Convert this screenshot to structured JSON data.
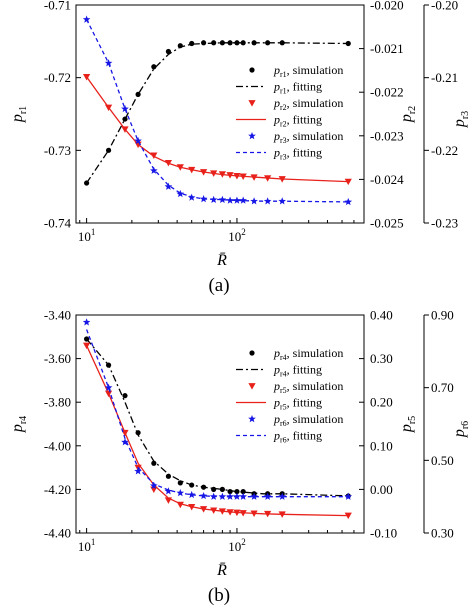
{
  "figure": {
    "panel_labels": [
      "(a)",
      "(b)"
    ]
  },
  "chart_data": [
    {
      "type": "line",
      "panel": "(a)",
      "xlabel": "R̄",
      "xscale": "log",
      "xlim": [
        8.5,
        700
      ],
      "xticks": [
        {
          "value": 10,
          "label": "10",
          "sup": "1"
        },
        {
          "value": 100,
          "label": "10",
          "sup": "2"
        }
      ],
      "left_axis": {
        "label": "p",
        "sub": "r1",
        "ylim": [
          -0.74,
          -0.71
        ],
        "ticks": [
          "-0.74",
          "-0.73",
          "-0.72",
          "-0.71"
        ]
      },
      "right_axes": [
        {
          "label": "p",
          "sub": "r2",
          "ylim": [
            -0.025,
            -0.02
          ],
          "ticks": [
            "-0.025",
            "-0.024",
            "-0.023",
            "-0.022",
            "-0.021",
            "-0.020"
          ]
        },
        {
          "label": "p",
          "sub": "r3",
          "ylim": [
            -0.23,
            -0.2
          ],
          "ticks": [
            "-0.23",
            "-0.22",
            "-0.21",
            "-0.20"
          ]
        }
      ],
      "series": [
        {
          "name": "p_r1, simulation",
          "label_main": "p",
          "label_sub": "r1",
          "label_rest": ", simulation",
          "kind": "marker",
          "marker": "circle",
          "color": "#000000",
          "axis": 0,
          "x": [
            10,
            14,
            18,
            22,
            28,
            35,
            42,
            50,
            60,
            70,
            80,
            90,
            100,
            110,
            130,
            160,
            200,
            550
          ],
          "y": [
            -0.7345,
            -0.73,
            -0.7257,
            -0.7223,
            -0.7185,
            -0.7164,
            -0.7156,
            -0.7153,
            -0.7152,
            -0.7152,
            -0.7152,
            -0.7152,
            -0.7152,
            -0.7152,
            -0.7152,
            -0.7152,
            -0.7152,
            -0.7153
          ]
        },
        {
          "name": "p_r1, fitting",
          "label_main": "p",
          "label_sub": "r1",
          "label_rest": ", fitting",
          "kind": "line",
          "dash": "7,3,2,3",
          "color": "#000000",
          "axis": 0,
          "x": [
            10,
            14,
            18,
            22,
            28,
            35,
            42,
            50,
            60,
            80,
            100,
            150,
            200,
            550
          ],
          "y": [
            -0.7345,
            -0.73,
            -0.7257,
            -0.7223,
            -0.7188,
            -0.7168,
            -0.7158,
            -0.7154,
            -0.7153,
            -0.7152,
            -0.7152,
            -0.7152,
            -0.7152,
            -0.7153
          ]
        },
        {
          "name": "p_r2, simulation",
          "label_main": "p",
          "label_sub": "r2",
          "label_rest": ", simulation",
          "kind": "marker",
          "marker": "triangle-down",
          "color": "#e8211b",
          "axis": 1,
          "x": [
            10,
            14,
            18,
            22,
            28,
            35,
            42,
            50,
            60,
            70,
            80,
            90,
            100,
            110,
            130,
            160,
            200,
            550
          ],
          "y": [
            -0.02165,
            -0.02235,
            -0.02285,
            -0.0232,
            -0.02345,
            -0.02362,
            -0.02372,
            -0.02378,
            -0.02383,
            -0.02386,
            -0.02388,
            -0.0239,
            -0.02392,
            -0.02393,
            -0.02395,
            -0.02397,
            -0.02399,
            -0.02405
          ]
        },
        {
          "name": "p_r2, fitting",
          "label_main": "p",
          "label_sub": "r2",
          "label_rest": ", fitting",
          "kind": "line",
          "dash": "",
          "color": "#e8211b",
          "axis": 1,
          "x": [
            10,
            14,
            18,
            22,
            28,
            35,
            42,
            50,
            60,
            80,
            100,
            150,
            200,
            550
          ],
          "y": [
            -0.02165,
            -0.02235,
            -0.02285,
            -0.0232,
            -0.02347,
            -0.02363,
            -0.02372,
            -0.02378,
            -0.02383,
            -0.02389,
            -0.02392,
            -0.02396,
            -0.02399,
            -0.02405
          ]
        },
        {
          "name": "p_r3, simulation",
          "label_main": "p",
          "label_sub": "r3",
          "label_rest": ", simulation",
          "kind": "marker",
          "marker": "star",
          "color": "#1616e6",
          "axis": 2,
          "x": [
            10,
            14,
            18,
            22,
            28,
            35,
            42,
            50,
            60,
            70,
            80,
            90,
            100,
            110,
            130,
            160,
            200,
            550
          ],
          "y": [
            -0.202,
            -0.208,
            -0.2143,
            -0.2187,
            -0.2228,
            -0.225,
            -0.226,
            -0.2265,
            -0.2267,
            -0.2268,
            -0.2268,
            -0.2269,
            -0.2269,
            -0.2269,
            -0.227,
            -0.227,
            -0.227,
            -0.2271
          ]
        },
        {
          "name": "p_r3, fitting",
          "label_main": "p",
          "label_sub": "r3",
          "label_rest": ", fitting",
          "kind": "line",
          "dash": "4,3",
          "color": "#1616e6",
          "axis": 2,
          "x": [
            10,
            14,
            18,
            22,
            28,
            35,
            42,
            50,
            60,
            80,
            100,
            150,
            200,
            550
          ],
          "y": [
            -0.202,
            -0.208,
            -0.2143,
            -0.2187,
            -0.2226,
            -0.2248,
            -0.2259,
            -0.2264,
            -0.2267,
            -0.2268,
            -0.2269,
            -0.227,
            -0.227,
            -0.2271
          ]
        }
      ]
    },
    {
      "type": "line",
      "panel": "(b)",
      "xlabel": "R̄",
      "xscale": "log",
      "xlim": [
        8.5,
        700
      ],
      "xticks": [
        {
          "value": 10,
          "label": "10",
          "sup": "1"
        },
        {
          "value": 100,
          "label": "10",
          "sup": "2"
        }
      ],
      "left_axis": {
        "label": "p",
        "sub": "r4",
        "ylim": [
          -4.4,
          -3.4
        ],
        "ticks": [
          "-4.40",
          "-4.20",
          "-4.00",
          "-3.80",
          "-3.60",
          "-3.40"
        ]
      },
      "right_axes": [
        {
          "label": "p",
          "sub": "r5",
          "ylim": [
            -0.1,
            0.4
          ],
          "ticks": [
            "-0.10",
            "0.00",
            "0.10",
            "0.20",
            "0.30",
            "0.40"
          ]
        },
        {
          "label": "p",
          "sub": "r6",
          "ylim": [
            0.3,
            0.9
          ],
          "ticks": [
            "0.30",
            "0.50",
            "0.70",
            "0.90"
          ]
        }
      ],
      "series": [
        {
          "name": "p_r4, simulation",
          "label_main": "p",
          "label_sub": "r4",
          "label_rest": ", simulation",
          "kind": "marker",
          "marker": "circle",
          "color": "#000000",
          "axis": 0,
          "x": [
            10,
            14,
            18,
            22,
            28,
            35,
            42,
            50,
            60,
            70,
            80,
            90,
            100,
            110,
            130,
            160,
            200,
            550
          ],
          "y": [
            -3.51,
            -3.63,
            -3.77,
            -3.94,
            -4.08,
            -4.14,
            -4.17,
            -4.18,
            -4.19,
            -4.2,
            -4.2,
            -4.21,
            -4.21,
            -4.21,
            -4.22,
            -4.22,
            -4.22,
            -4.23
          ]
        },
        {
          "name": "p_r4, fitting",
          "label_main": "p",
          "label_sub": "r4",
          "label_rest": ", fitting",
          "kind": "line",
          "dash": "7,3,2,3",
          "color": "#000000",
          "axis": 0,
          "x": [
            10,
            14,
            18,
            22,
            28,
            35,
            42,
            50,
            60,
            80,
            100,
            150,
            200,
            550
          ],
          "y": [
            -3.51,
            -3.63,
            -3.8,
            -3.95,
            -4.07,
            -4.13,
            -4.16,
            -4.18,
            -4.19,
            -4.2,
            -4.21,
            -4.22,
            -4.22,
            -4.23
          ]
        },
        {
          "name": "p_r5, simulation",
          "label_main": "p",
          "label_sub": "r5",
          "label_rest": ", simulation",
          "kind": "marker",
          "marker": "triangle-down",
          "color": "#e8211b",
          "axis": 1,
          "x": [
            10,
            14,
            18,
            22,
            28,
            35,
            42,
            50,
            60,
            70,
            80,
            90,
            100,
            110,
            130,
            160,
            200,
            550
          ],
          "y": [
            0.33,
            0.22,
            0.13,
            0.05,
            0.0,
            -0.025,
            -0.035,
            -0.04,
            -0.045,
            -0.048,
            -0.05,
            -0.052,
            -0.053,
            -0.054,
            -0.055,
            -0.056,
            -0.057,
            -0.06
          ]
        },
        {
          "name": "p_r5, fitting",
          "label_main": "p",
          "label_sub": "r5",
          "label_rest": ", fitting",
          "kind": "line",
          "dash": "",
          "color": "#e8211b",
          "axis": 1,
          "x": [
            10,
            14,
            18,
            22,
            28,
            35,
            42,
            50,
            60,
            80,
            100,
            150,
            200,
            550
          ],
          "y": [
            0.33,
            0.22,
            0.13,
            0.06,
            0.01,
            -0.02,
            -0.033,
            -0.04,
            -0.045,
            -0.05,
            -0.053,
            -0.056,
            -0.057,
            -0.06
          ]
        },
        {
          "name": "p_r6, simulation",
          "label_main": "p",
          "label_sub": "r6",
          "label_rest": ", simulation",
          "kind": "marker",
          "marker": "star",
          "color": "#1616e6",
          "axis": 2,
          "x": [
            10,
            14,
            18,
            22,
            28,
            35,
            42,
            50,
            60,
            70,
            80,
            90,
            100,
            110,
            130,
            160,
            200,
            550
          ],
          "y": [
            0.88,
            0.7,
            0.55,
            0.47,
            0.43,
            0.415,
            0.41,
            0.405,
            0.402,
            0.4,
            0.4,
            0.4,
            0.4,
            0.4,
            0.4,
            0.4,
            0.4,
            0.4
          ]
        },
        {
          "name": "p_r6, fitting",
          "label_main": "p",
          "label_sub": "r6",
          "label_rest": ", fitting",
          "kind": "line",
          "dash": "4,3",
          "color": "#1616e6",
          "axis": 2,
          "x": [
            10,
            14,
            18,
            22,
            28,
            35,
            42,
            50,
            60,
            80,
            100,
            150,
            200,
            550
          ],
          "y": [
            0.86,
            0.7,
            0.56,
            0.48,
            0.435,
            0.418,
            0.41,
            0.405,
            0.402,
            0.4,
            0.4,
            0.4,
            0.4,
            0.4
          ]
        }
      ]
    }
  ]
}
